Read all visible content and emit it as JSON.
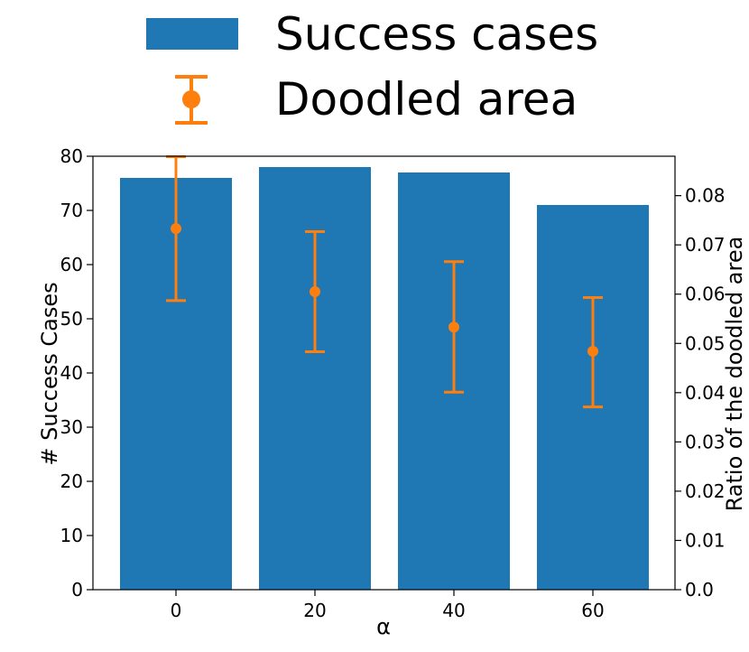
{
  "chart_data": {
    "type": "bar",
    "categories": [
      "0",
      "20",
      "40",
      "60"
    ],
    "series": [
      {
        "name": "Success cases",
        "axis": "left",
        "values": [
          76,
          78,
          77,
          71
        ]
      },
      {
        "name": "Doodled area",
        "axis": "right",
        "kind": "errorbar",
        "values": [
          0.0733,
          0.0605,
          0.0533,
          0.0484
        ],
        "error_low": [
          0.0587,
          0.0483,
          0.0401,
          0.0371
        ],
        "error_high": [
          0.0879,
          0.0727,
          0.0666,
          0.0593
        ]
      }
    ],
    "xlabel": "α",
    "ylabel": "# Success Cases",
    "y2label": "Ratio of the doodled area",
    "ylim": [
      0,
      80
    ],
    "y2lim": [
      0,
      0.088
    ],
    "yticks": [
      0,
      10,
      20,
      30,
      40,
      50,
      60,
      70,
      80
    ],
    "y2ticks": [
      "0.0",
      "0.01",
      "0.02",
      "0.03",
      "0.04",
      "0.05",
      "0.06",
      "0.07",
      "0.08"
    ],
    "legend_position": "top-center",
    "colors": {
      "bars": "#1f77b4",
      "errorbars": "#ff7f0e"
    }
  }
}
